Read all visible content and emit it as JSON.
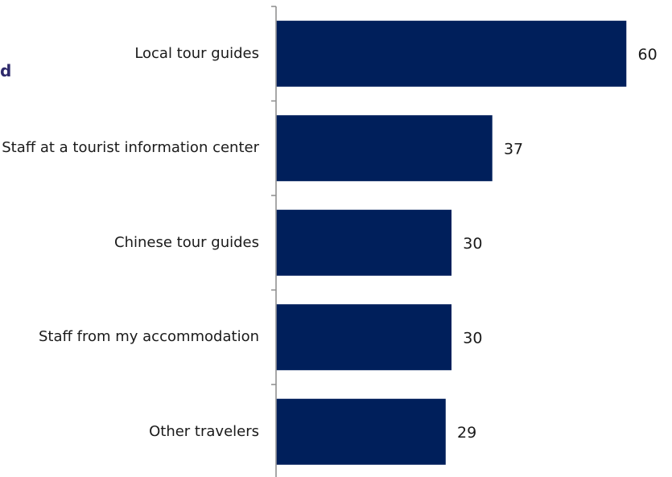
{
  "title_fragment": "d",
  "chart_data": {
    "type": "bar",
    "orientation": "horizontal",
    "categories": [
      "Local tour guides",
      "Staff at a tourist information center",
      "Chinese tour guides",
      "Staff from my accommodation",
      "Other travelers"
    ],
    "values": [
      60,
      37,
      30,
      30,
      29
    ],
    "value_labels": [
      "60",
      "37",
      "30",
      "30",
      "29"
    ],
    "xlim": [
      0,
      66
    ],
    "grid": false,
    "legend": "none",
    "colors": {
      "bar": "#001f5b",
      "axis": "#8c8c8c",
      "title": "#2e2a6b"
    }
  }
}
